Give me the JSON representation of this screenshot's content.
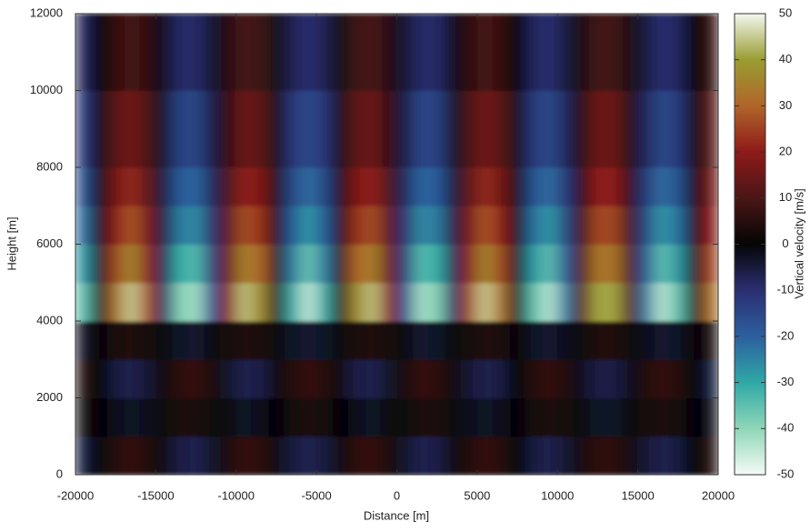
{
  "chart_data": {
    "type": "heatmap",
    "xlabel": "Distance [m]",
    "ylabel": "Height [m]",
    "zlabel": "Vertical velocity [m/s]",
    "xlim": [
      -20000,
      20000
    ],
    "ylim": [
      0,
      12000
    ],
    "zlim": [
      -50,
      50
    ],
    "xticks": [
      -20000,
      -15000,
      -10000,
      -5000,
      0,
      5000,
      10000,
      15000,
      20000
    ],
    "yticks": [
      0,
      2000,
      4000,
      6000,
      8000,
      10000,
      12000
    ],
    "zticks": [
      -50,
      -40,
      -30,
      -20,
      -10,
      0,
      10,
      20,
      30,
      40,
      50
    ],
    "colorscale": [
      "#f4fbf6",
      "#8fd6b8",
      "#2fa8a6",
      "#2c5f9e",
      "#2b2f72",
      "#050505",
      "#4a1616",
      "#8e1a1a",
      "#b0652a",
      "#9a9c32",
      "#f2f8ee"
    ],
    "xbins": [
      -20000,
      -19000,
      -18000,
      -17000,
      -16000,
      -15000,
      -14000,
      -13000,
      -12000,
      -11000,
      -10000,
      -9000,
      -8000,
      -7000,
      -6000,
      -5000,
      -4000,
      -3000,
      -2000,
      -1000,
      0,
      1000,
      2000,
      3000,
      4000,
      5000,
      6000,
      7000,
      8000,
      9000,
      10000,
      11000,
      12000,
      13000,
      14000,
      15000,
      16000,
      17000,
      18000,
      19000,
      20000
    ],
    "ybins": [
      0,
      1000,
      2000,
      3000,
      4000,
      5000,
      6000,
      7000,
      8000,
      10000,
      12000
    ],
    "z": [
      [
        -5,
        0,
        5,
        7,
        4,
        -1,
        -6,
        -7,
        -3,
        3,
        7,
        6,
        1,
        -5,
        -7,
        -5,
        1,
        6,
        7,
        3,
        -3,
        -7,
        -6,
        -1,
        4,
        7,
        5,
        0,
        -5,
        -7,
        -4,
        2,
        6,
        6,
        2,
        -4,
        -7,
        -5,
        0,
        5
      ],
      [
        2,
        0,
        -2,
        -3,
        -2,
        1,
        3,
        3,
        1,
        -1,
        -3,
        -2,
        0,
        2,
        3,
        2,
        0,
        -2,
        -3,
        -1,
        1,
        3,
        3,
        1,
        -2,
        -3,
        -2,
        0,
        2,
        3,
        2,
        -1,
        -3,
        -3,
        -1,
        2,
        3,
        2,
        0,
        -2
      ],
      [
        5,
        0,
        -5,
        -7,
        -4,
        1,
        6,
        7,
        3,
        -3,
        -7,
        -6,
        -1,
        5,
        7,
        5,
        -1,
        -6,
        -7,
        -3,
        3,
        7,
        6,
        1,
        -4,
        -7,
        -5,
        0,
        5,
        7,
        4,
        -2,
        -6,
        -6,
        -2,
        4,
        7,
        5,
        0,
        -5
      ],
      [
        -3,
        0,
        3,
        4,
        2,
        -1,
        -3,
        -4,
        -1,
        2,
        4,
        3,
        1,
        -3,
        -4,
        -3,
        1,
        3,
        4,
        2,
        -1,
        -4,
        -3,
        -1,
        2,
        4,
        3,
        0,
        -3,
        -4,
        -2,
        1,
        4,
        4,
        1,
        -2,
        -4,
        -3,
        0,
        3
      ],
      [
        -35,
        -2,
        32,
        45,
        27,
        -9,
        -39,
        -42,
        -17,
        20,
        44,
        37,
        6,
        -30,
        -45,
        -30,
        6,
        37,
        44,
        20,
        -17,
        -42,
        -39,
        -9,
        27,
        45,
        32,
        -2,
        -35,
        -44,
        -24,
        13,
        41,
        41,
        13,
        -24,
        -44,
        -35,
        -2,
        32
      ],
      [
        -28,
        -2,
        26,
        36,
        21,
        -8,
        -31,
        -34,
        -13,
        16,
        35,
        30,
        5,
        -24,
        -36,
        -24,
        5,
        30,
        35,
        16,
        -13,
        -34,
        -31,
        -8,
        21,
        36,
        26,
        -2,
        -28,
        -35,
        -19,
        11,
        33,
        33,
        11,
        -19,
        -35,
        -28,
        -2,
        26
      ],
      [
        -22,
        -1,
        20,
        28,
        17,
        -6,
        -24,
        -26,
        -10,
        13,
        27,
        23,
        4,
        -19,
        -28,
        -19,
        4,
        23,
        27,
        13,
        -10,
        -26,
        -24,
        -6,
        17,
        28,
        20,
        -1,
        -22,
        -28,
        -15,
        8,
        26,
        26,
        8,
        -15,
        -28,
        -22,
        -1,
        20
      ],
      [
        -17,
        -1,
        16,
        22,
        13,
        -5,
        -19,
        -21,
        -8,
        10,
        21,
        18,
        3,
        -15,
        -22,
        -15,
        3,
        18,
        21,
        10,
        -8,
        -21,
        -19,
        -5,
        13,
        22,
        16,
        -1,
        -17,
        -22,
        -12,
        6,
        20,
        20,
        6,
        -12,
        -22,
        -17,
        -1,
        16
      ],
      [
        -12,
        -1,
        12,
        16,
        10,
        -3,
        -14,
        -15,
        -6,
        7,
        15,
        13,
        2,
        -11,
        -16,
        -11,
        2,
        13,
        15,
        7,
        -6,
        -15,
        -14,
        -3,
        10,
        16,
        12,
        -1,
        -12,
        -16,
        -8,
        5,
        15,
        15,
        5,
        -8,
        -16,
        -12,
        -1,
        12
      ],
      [
        -8,
        0,
        7,
        10,
        6,
        -2,
        -9,
        -9,
        -4,
        5,
        10,
        8,
        1,
        -7,
        -10,
        -7,
        1,
        8,
        10,
        5,
        -4,
        -9,
        -9,
        -2,
        6,
        10,
        7,
        0,
        -8,
        -10,
        -5,
        3,
        9,
        9,
        3,
        -5,
        -10,
        -8,
        0,
        7
      ]
    ]
  }
}
